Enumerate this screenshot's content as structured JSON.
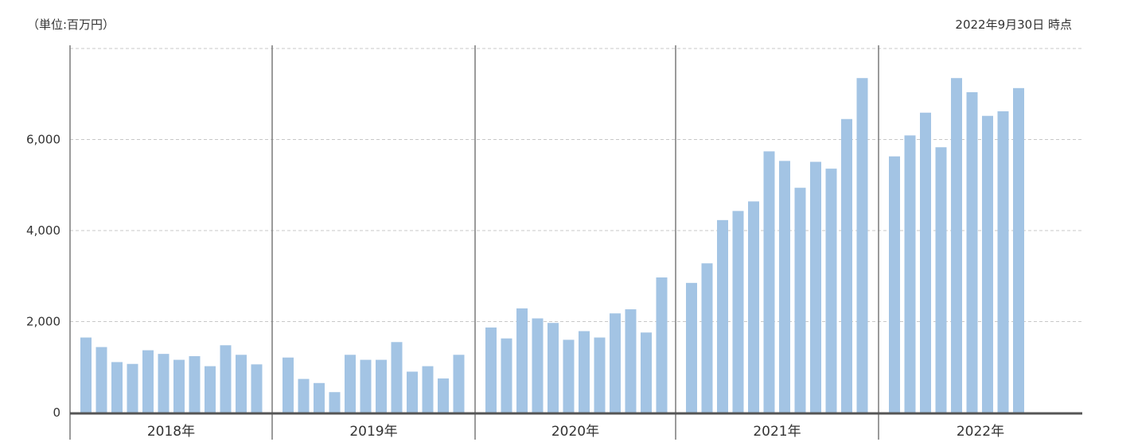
{
  "header": {
    "unit_label": "（単位:百万円）",
    "as_of_label": "2022年9月30日 時点"
  },
  "chart_data": {
    "type": "bar",
    "title": "",
    "xlabel": "",
    "ylabel": "",
    "unit": "百万円",
    "ylim": [
      0,
      8000
    ],
    "yticks": [
      0,
      2000,
      4000,
      6000
    ],
    "ytick_labels": [
      "0",
      "2,000",
      "4,000",
      "6,000"
    ],
    "grid": true,
    "bar_color": "#a3c4e4",
    "groups": [
      {
        "label": "2018年",
        "values": [
          1650,
          1440,
          1110,
          1070,
          1370,
          1290,
          1160,
          1240,
          1020,
          1480,
          1270,
          1060
        ]
      },
      {
        "label": "2019年",
        "values": [
          1210,
          740,
          650,
          450,
          1270,
          1160,
          1160,
          1550,
          900,
          1020,
          750,
          1270
        ]
      },
      {
        "label": "2020年",
        "values": [
          1870,
          1630,
          2290,
          2070,
          1970,
          1600,
          1790,
          1650,
          2180,
          2270,
          1760,
          2970
        ]
      },
      {
        "label": "2021年",
        "values": [
          2850,
          3280,
          4230,
          4430,
          4640,
          5740,
          5530,
          4940,
          5510,
          5360,
          6450,
          7350
        ]
      },
      {
        "label": "2022年",
        "values": [
          5630,
          6090,
          6590,
          5830,
          7350,
          7040,
          6520,
          6620,
          7130
        ]
      }
    ]
  }
}
